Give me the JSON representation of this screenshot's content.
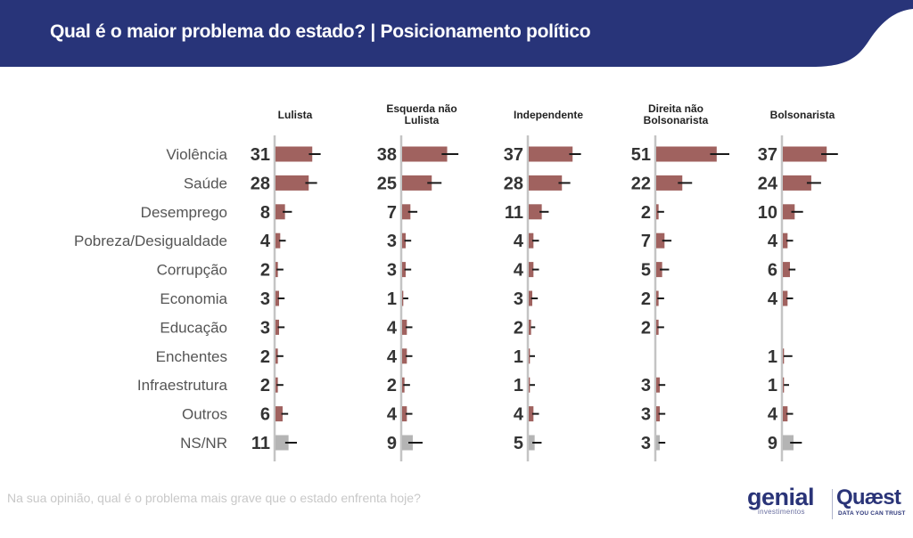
{
  "header": {
    "title": "Qual é o maior problema do estado? | Posicionamento político",
    "background_color": "#283479"
  },
  "footnote": "Na sua opinião, qual é o problema mais grave que o estado enfrenta hoje?",
  "logos": {
    "genial": "genial",
    "genial_sub": "investimentos",
    "quaest": "Quæst",
    "quaest_sub": "DATA YOU CAN TRUST"
  },
  "chart_data": {
    "type": "bar",
    "orientation": "horizontal",
    "title": "Qual é o maior problema do estado? | Posicionamento político",
    "subtitle": "Na sua opinião, qual é o problema mais grave que o estado enfrenta hoje?",
    "xlabel": "",
    "ylabel": "",
    "unit": "%",
    "grid": false,
    "error_bars": true,
    "colors": {
      "bar": "#a0625f",
      "bar_nsnr": "#b4b4b4",
      "error_bar": "#1a1a1a",
      "axis": "#c4c4c4",
      "value_label": "#333333",
      "category_label": "#555555"
    },
    "categories": [
      "Violência",
      "Saúde",
      "Desemprego",
      "Pobreza/Desigualdade",
      "Corrupção",
      "Economia",
      "Educação",
      "Enchentes",
      "Infraestrutura",
      "Outros",
      "NS/NR"
    ],
    "series": [
      {
        "name": "Lulista",
        "values": [
          31,
          28,
          8,
          4,
          2,
          3,
          3,
          2,
          2,
          6,
          11
        ]
      },
      {
        "name": "Esquerda não Lulista",
        "name_lines": [
          "Esquerda não",
          "Lulista"
        ],
        "values": [
          38,
          25,
          7,
          3,
          3,
          1,
          4,
          4,
          2,
          4,
          9
        ]
      },
      {
        "name": "Independente",
        "values": [
          37,
          28,
          11,
          4,
          4,
          3,
          2,
          1,
          1,
          4,
          5
        ]
      },
      {
        "name": "Direita não Bolsonarista",
        "name_lines": [
          "Direita não",
          "Bolsonarista"
        ],
        "values": [
          51,
          22,
          2,
          7,
          5,
          2,
          2,
          null,
          3,
          3,
          3
        ]
      },
      {
        "name": "Bolsonarista",
        "values": [
          37,
          24,
          10,
          4,
          6,
          4,
          null,
          1,
          1,
          4,
          9
        ]
      }
    ],
    "error_margin": [
      [
        4,
        4,
        3,
        2,
        2,
        2,
        2,
        2,
        2,
        2,
        4
      ],
      [
        6,
        5,
        3,
        2,
        2,
        1,
        2,
        2,
        2,
        2,
        5
      ],
      [
        4,
        4,
        3,
        2,
        2,
        2,
        1,
        1,
        1,
        2,
        3
      ],
      [
        7,
        5,
        2,
        3,
        3,
        2,
        2,
        null,
        2,
        2,
        2
      ],
      [
        6,
        5,
        4,
        2,
        2,
        2,
        null,
        4,
        1,
        2,
        4
      ]
    ]
  }
}
